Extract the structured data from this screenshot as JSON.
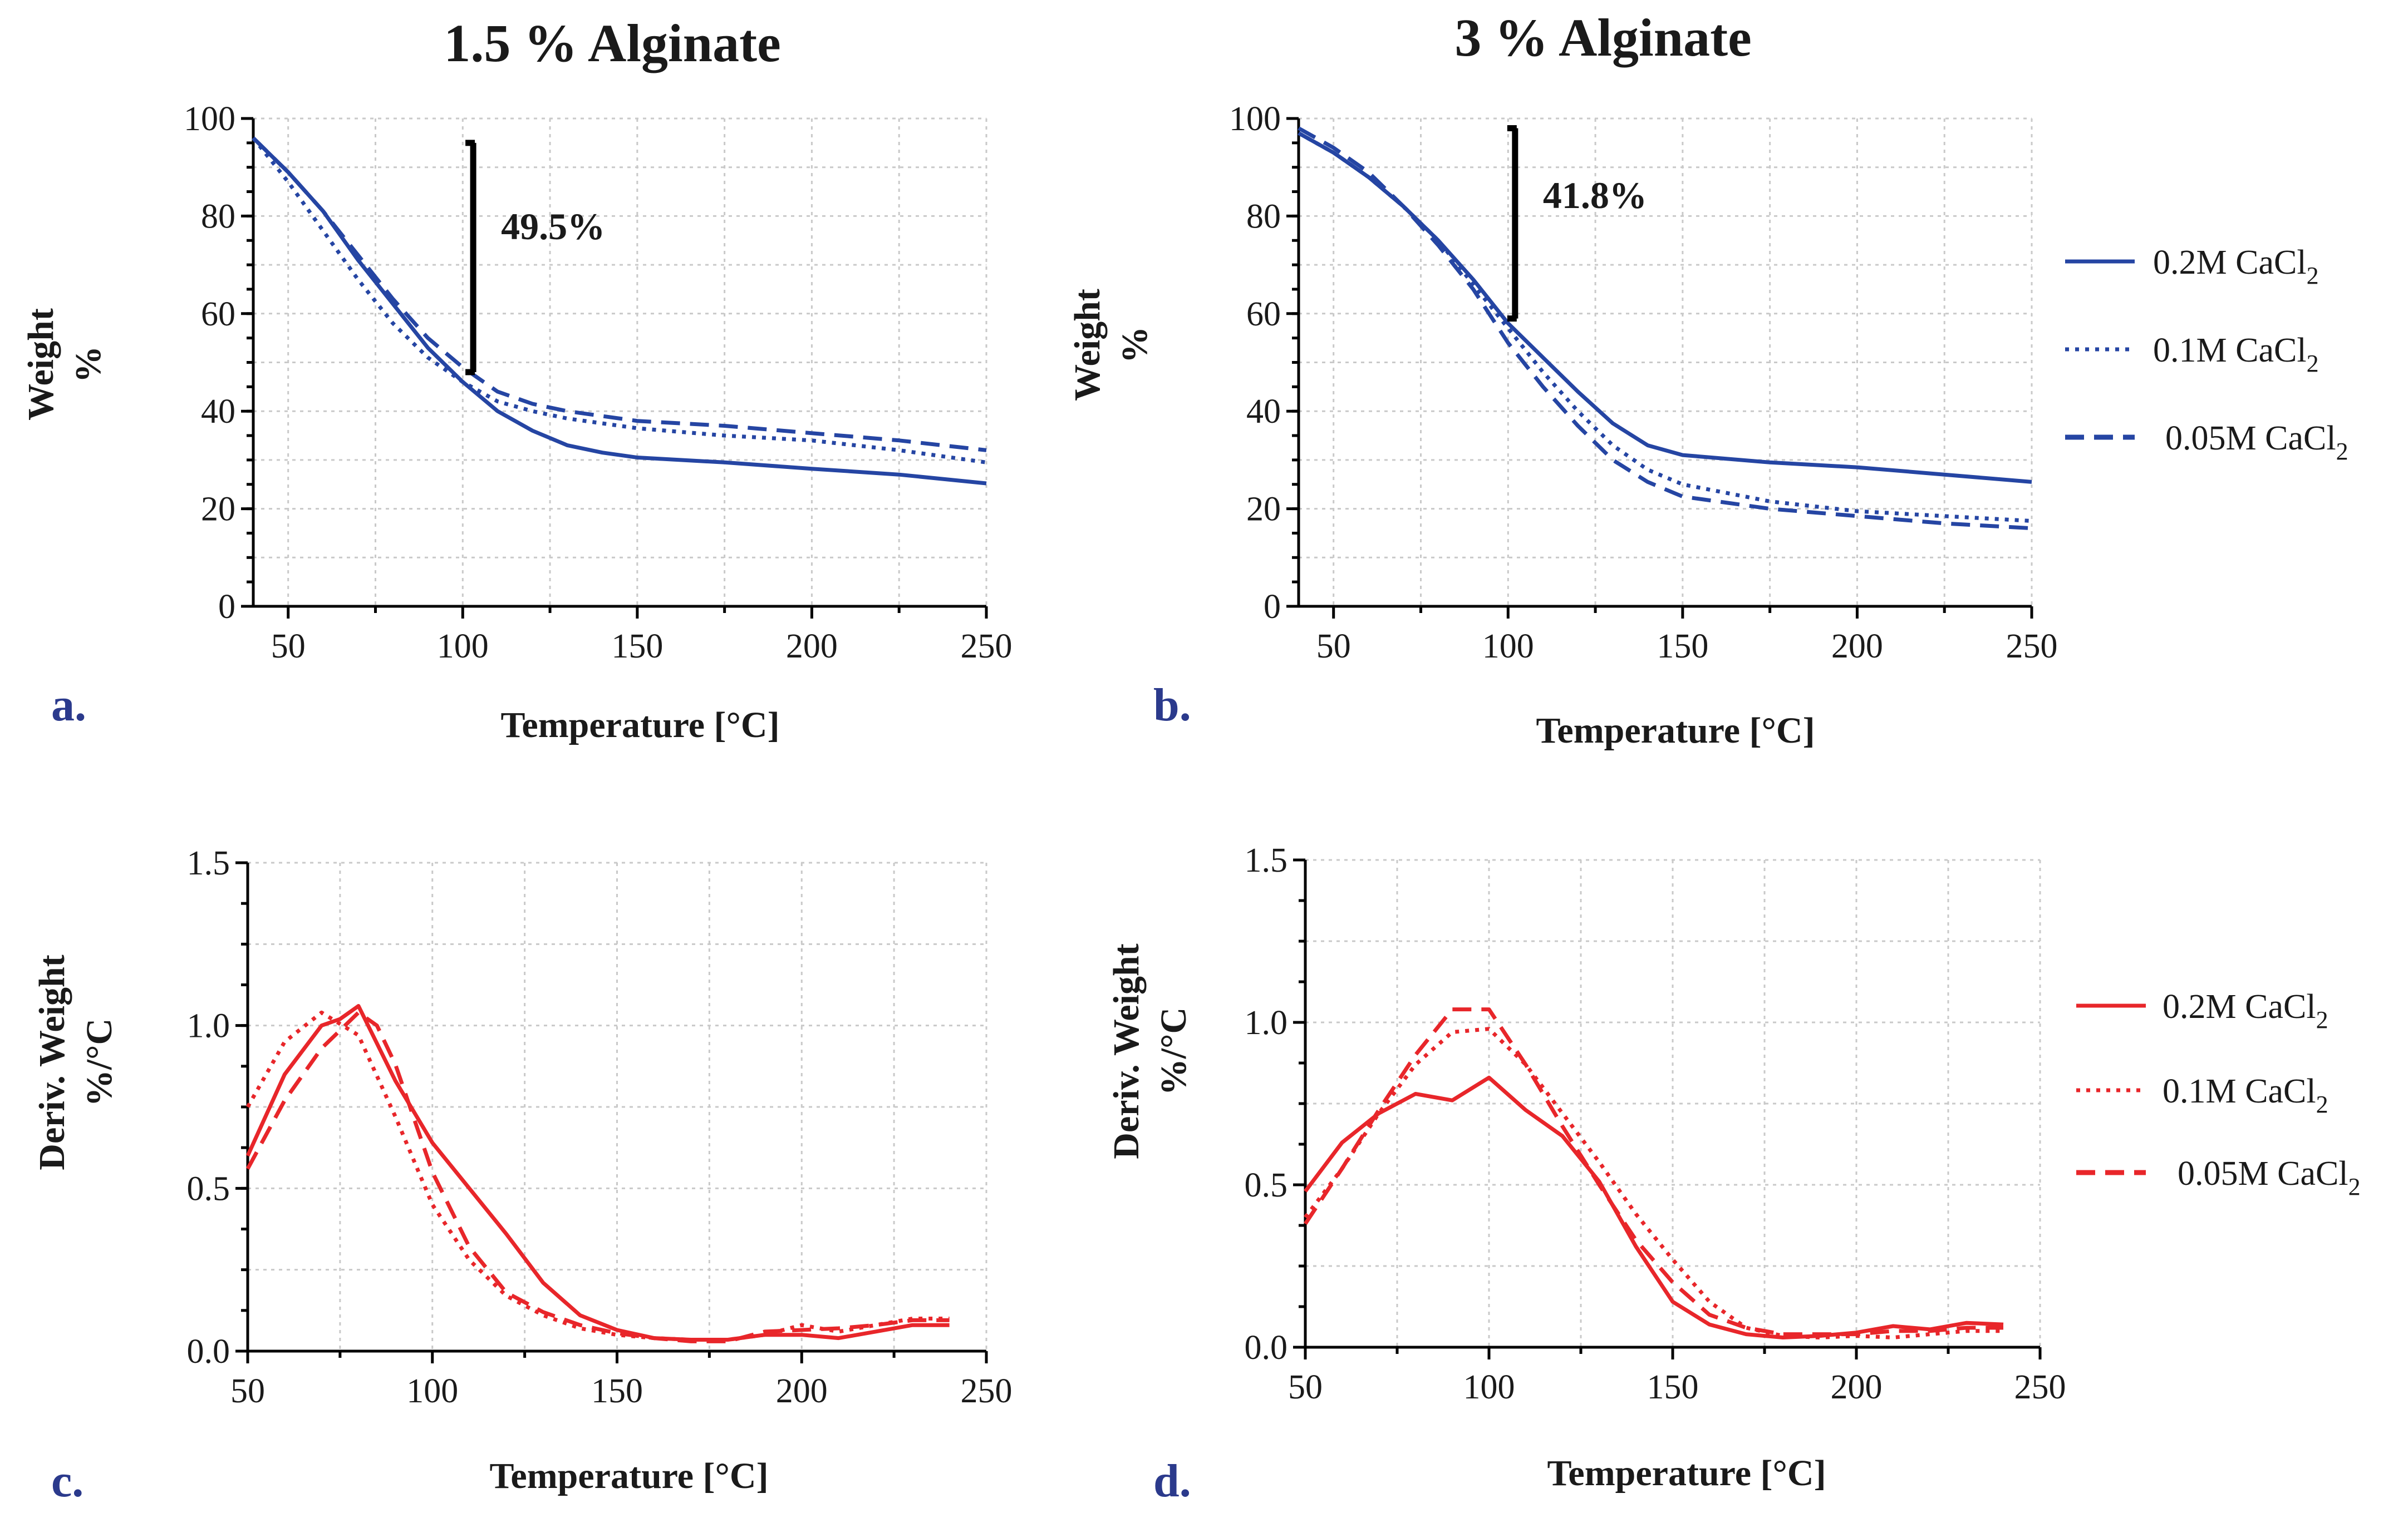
{
  "colors": {
    "blue": "#2545a3",
    "red": "#e8262a",
    "panel_letter": "#2b3a8c"
  },
  "panels": [
    {
      "id": "a",
      "letter": "a.",
      "title": "1.5 % Alginate",
      "xlabel": "Temperature [°C]",
      "ylabel_line1": "Weight",
      "ylabel_line2": "%",
      "xticks": [
        "50",
        "100",
        "150",
        "200",
        "250"
      ],
      "yticks": [
        "0",
        "20",
        "40",
        "60",
        "80",
        "100"
      ],
      "annotation": "49.5%"
    },
    {
      "id": "b",
      "letter": "b.",
      "title": "3 % Alginate",
      "xlabel": "Temperature [°C]",
      "ylabel_line1": "Weight",
      "ylabel_line2": "%",
      "xticks": [
        "50",
        "100",
        "150",
        "200",
        "250"
      ],
      "yticks": [
        "0",
        "20",
        "40",
        "60",
        "80",
        "100"
      ],
      "annotation": "41.8%"
    },
    {
      "id": "c",
      "letter": "c.",
      "xlabel": "Temperature [°C]",
      "ylabel_line1": "Deriv. Weight",
      "ylabel_line2": "%/°C",
      "xticks": [
        "50",
        "100",
        "150",
        "200",
        "250"
      ],
      "yticks": [
        "0.0",
        "0.5",
        "1.0",
        "1.5"
      ]
    },
    {
      "id": "d",
      "letter": "d.",
      "xlabel": "Temperature [°C]",
      "ylabel_line1": "Deriv. Weight",
      "ylabel_line2": "%/°C",
      "xticks": [
        "50",
        "100",
        "150",
        "200",
        "250"
      ],
      "yticks": [
        "0.0",
        "0.5",
        "1.0",
        "1.5"
      ]
    }
  ],
  "legend_top": {
    "items": [
      {
        "label": "0.2M CaCl",
        "sub": "2",
        "style": "solid"
      },
      {
        "label": "0.1M CaCl",
        "sub": "2",
        "style": "dotted"
      },
      {
        "label": "0.05M CaCl",
        "sub": "2",
        "style": "dashed"
      }
    ]
  },
  "legend_bottom": {
    "items": [
      {
        "label": "0.2M CaCl",
        "sub": "2",
        "style": "solid"
      },
      {
        "label": "0.1M CaCl",
        "sub": "2",
        "style": "dotted"
      },
      {
        "label": "0.05M CaCl",
        "sub": "2",
        "style": "dashed"
      }
    ]
  },
  "chart_data": [
    {
      "panel": "a",
      "type": "line",
      "title": "1.5 % Alginate",
      "xlabel": "Temperature [°C]",
      "ylabel": "Weight %",
      "xlim": [
        40,
        250
      ],
      "ylim": [
        0,
        100
      ],
      "grid": true,
      "annotation": {
        "text": "49.5%",
        "x": 103,
        "y_from": 95,
        "y_to": 48
      },
      "series": [
        {
          "name": "0.2M CaCl2",
          "style": "solid",
          "x": [
            40,
            50,
            60,
            70,
            80,
            90,
            100,
            110,
            120,
            130,
            140,
            150,
            175,
            200,
            225,
            250
          ],
          "y": [
            96,
            89,
            81,
            71,
            62,
            53,
            46,
            40,
            36,
            33,
            31.5,
            30.5,
            29.5,
            28.2,
            27,
            25.2
          ]
        },
        {
          "name": "0.1M CaCl2",
          "style": "dotted",
          "x": [
            40,
            50,
            60,
            70,
            80,
            90,
            100,
            110,
            120,
            130,
            140,
            150,
            175,
            200,
            225,
            250
          ],
          "y": [
            96,
            87,
            77,
            67,
            58,
            51,
            46,
            42,
            40,
            38.5,
            37.5,
            36.5,
            35,
            34,
            32,
            29.5
          ]
        },
        {
          "name": "0.05M CaCl2",
          "style": "dashed",
          "x": [
            40,
            50,
            60,
            70,
            80,
            90,
            100,
            110,
            120,
            130,
            140,
            150,
            175,
            200,
            225,
            250
          ],
          "y": [
            96,
            89,
            81,
            72,
            63,
            55,
            49,
            44,
            41.5,
            40,
            39,
            38,
            37,
            35.5,
            34,
            32
          ]
        }
      ]
    },
    {
      "panel": "b",
      "type": "line",
      "title": "3 % Alginate",
      "xlabel": "Temperature [°C]",
      "ylabel": "Weight %",
      "xlim": [
        40,
        250
      ],
      "ylim": [
        0,
        100
      ],
      "grid": true,
      "annotation": {
        "text": "41.8%",
        "x": 102,
        "y_from": 98,
        "y_to": 59
      },
      "series": [
        {
          "name": "0.2M CaCl2",
          "style": "solid",
          "x": [
            40,
            50,
            60,
            70,
            80,
            90,
            100,
            110,
            120,
            130,
            140,
            150,
            175,
            200,
            225,
            250
          ],
          "y": [
            97,
            93,
            88,
            82,
            75,
            67,
            58,
            51,
            44,
            37.5,
            33,
            31,
            29.5,
            28.5,
            27,
            25.5
          ]
        },
        {
          "name": "0.1M CaCl2",
          "style": "dotted",
          "x": [
            40,
            50,
            60,
            70,
            80,
            90,
            100,
            110,
            120,
            130,
            140,
            150,
            175,
            200,
            225,
            250
          ],
          "y": [
            97,
            93,
            88,
            82,
            75,
            66,
            57,
            48,
            40,
            33,
            28,
            25,
            21.5,
            19.5,
            18.5,
            17.5
          ]
        },
        {
          "name": "0.05M CaCl2",
          "style": "dashed",
          "x": [
            40,
            50,
            60,
            70,
            80,
            90,
            100,
            110,
            120,
            130,
            140,
            150,
            175,
            200,
            225,
            250
          ],
          "y": [
            98,
            94,
            89,
            82,
            74,
            65,
            54,
            45,
            37,
            30,
            25.5,
            22.5,
            20,
            18.5,
            17,
            16
          ]
        }
      ]
    },
    {
      "panel": "c",
      "type": "line",
      "xlabel": "Temperature [°C]",
      "ylabel": "Deriv. Weight %/°C",
      "xlim": [
        50,
        250
      ],
      "ylim": [
        0,
        1.5
      ],
      "grid": true,
      "series": [
        {
          "name": "0.2M CaCl2",
          "style": "solid",
          "x": [
            50,
            60,
            70,
            75,
            80,
            90,
            100,
            110,
            120,
            130,
            140,
            150,
            160,
            170,
            180,
            190,
            200,
            210,
            220,
            230,
            240
          ],
          "y": [
            0.6,
            0.85,
            1.0,
            1.02,
            1.06,
            0.83,
            0.64,
            0.5,
            0.36,
            0.21,
            0.11,
            0.065,
            0.04,
            0.035,
            0.035,
            0.05,
            0.05,
            0.04,
            0.06,
            0.08,
            0.08
          ]
        },
        {
          "name": "0.1M CaCl2",
          "style": "dotted",
          "x": [
            50,
            60,
            70,
            80,
            90,
            100,
            110,
            120,
            130,
            140,
            150,
            160,
            170,
            180,
            190,
            200,
            210,
            220,
            230,
            240
          ],
          "y": [
            0.75,
            0.95,
            1.04,
            0.97,
            0.72,
            0.45,
            0.28,
            0.17,
            0.11,
            0.07,
            0.05,
            0.04,
            0.035,
            0.035,
            0.05,
            0.08,
            0.06,
            0.08,
            0.1,
            0.1
          ]
        },
        {
          "name": "0.05M CaCl2",
          "style": "dashed",
          "x": [
            50,
            60,
            70,
            80,
            85,
            90,
            100,
            110,
            120,
            130,
            140,
            150,
            160,
            170,
            180,
            190,
            200,
            210,
            220,
            230,
            240
          ],
          "y": [
            0.56,
            0.77,
            0.93,
            1.04,
            1.0,
            0.88,
            0.55,
            0.32,
            0.18,
            0.12,
            0.08,
            0.055,
            0.04,
            0.03,
            0.03,
            0.06,
            0.065,
            0.07,
            0.08,
            0.095,
            0.095
          ]
        }
      ]
    },
    {
      "panel": "d",
      "type": "line",
      "xlabel": "Temperature [°C]",
      "ylabel": "Deriv. Weight %/°C",
      "xlim": [
        50,
        250
      ],
      "ylim": [
        0,
        1.5
      ],
      "grid": true,
      "series": [
        {
          "name": "0.2M CaCl2",
          "style": "solid",
          "x": [
            50,
            60,
            70,
            80,
            90,
            100,
            110,
            120,
            130,
            140,
            150,
            160,
            170,
            180,
            190,
            200,
            210,
            220,
            230,
            240
          ],
          "y": [
            0.48,
            0.63,
            0.72,
            0.78,
            0.76,
            0.83,
            0.73,
            0.65,
            0.51,
            0.31,
            0.14,
            0.07,
            0.04,
            0.03,
            0.035,
            0.045,
            0.065,
            0.055,
            0.075,
            0.07
          ]
        },
        {
          "name": "0.1M CaCl2",
          "style": "dotted",
          "x": [
            50,
            60,
            70,
            80,
            90,
            100,
            110,
            120,
            130,
            140,
            150,
            160,
            170,
            180,
            190,
            200,
            210,
            220,
            230,
            240
          ],
          "y": [
            0.4,
            0.55,
            0.72,
            0.87,
            0.97,
            0.98,
            0.87,
            0.72,
            0.57,
            0.41,
            0.27,
            0.14,
            0.06,
            0.035,
            0.03,
            0.035,
            0.03,
            0.04,
            0.05,
            0.05
          ]
        },
        {
          "name": "0.05M CaCl2",
          "style": "dashed",
          "x": [
            50,
            60,
            70,
            80,
            90,
            100,
            110,
            120,
            130,
            140,
            150,
            160,
            170,
            180,
            190,
            200,
            210,
            220,
            230,
            240
          ],
          "y": [
            0.38,
            0.55,
            0.73,
            0.9,
            1.04,
            1.04,
            0.87,
            0.68,
            0.5,
            0.33,
            0.2,
            0.1,
            0.06,
            0.04,
            0.04,
            0.04,
            0.05,
            0.05,
            0.06,
            0.06
          ]
        }
      ]
    }
  ]
}
